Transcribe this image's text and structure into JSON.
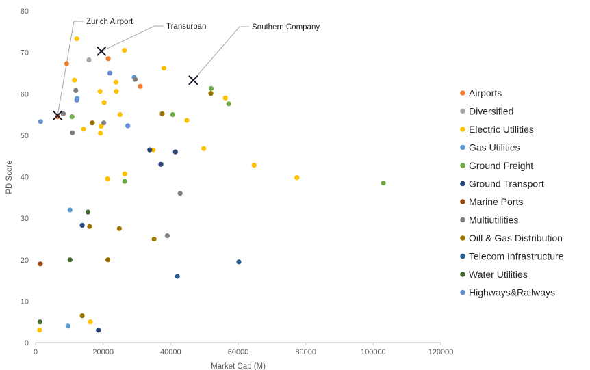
{
  "chart_data": {
    "type": "scatter",
    "xlabel": "Market Cap (M)",
    "ylabel": "PD Score",
    "xlim": [
      0,
      120000
    ],
    "ylim": [
      0,
      80
    ],
    "xticks": [
      0,
      20000,
      40000,
      60000,
      80000,
      100000,
      120000
    ],
    "yticks": [
      0,
      10,
      20,
      30,
      40,
      50,
      60,
      70,
      80
    ],
    "grid": false,
    "legend_position": "right",
    "series": [
      {
        "name": "Airports",
        "color": "#ED7D31",
        "points": [
          [
            6500,
            54.5
          ],
          [
            9200,
            67.3
          ],
          [
            21500,
            68.5
          ],
          [
            31000,
            61.8
          ]
        ]
      },
      {
        "name": "Diversified",
        "color": "#A5A5A5",
        "points": [
          [
            15800,
            68.2
          ]
        ]
      },
      {
        "name": "Electric Utilities",
        "color": "#FFC000",
        "points": [
          [
            1200,
            3
          ],
          [
            11500,
            63.3
          ],
          [
            12200,
            73.3
          ],
          [
            14200,
            51.5
          ],
          [
            16200,
            5
          ],
          [
            19100,
            60.6
          ],
          [
            19200,
            50.5
          ],
          [
            19400,
            52.2
          ],
          [
            20300,
            57.9
          ],
          [
            21300,
            39.5
          ],
          [
            23800,
            62.8
          ],
          [
            23900,
            60.6
          ],
          [
            25000,
            55
          ],
          [
            26300,
            70.5
          ],
          [
            26400,
            40.7
          ],
          [
            34800,
            46.5
          ],
          [
            38000,
            66.2
          ],
          [
            44800,
            53.6
          ],
          [
            49800,
            46.8
          ],
          [
            56200,
            59
          ],
          [
            64700,
            42.8
          ],
          [
            77400,
            39.8
          ]
        ]
      },
      {
        "name": "Gas Utilities",
        "color": "#5B9BD5",
        "points": [
          [
            9600,
            4
          ],
          [
            10200,
            32
          ],
          [
            12300,
            58.9
          ],
          [
            29200,
            64
          ]
        ]
      },
      {
        "name": "Ground Freight",
        "color": "#70AD47",
        "points": [
          [
            10800,
            54.5
          ],
          [
            26400,
            38.9
          ],
          [
            40600,
            55
          ],
          [
            52000,
            61.3
          ],
          [
            57200,
            57.6
          ],
          [
            103000,
            38.5
          ]
        ]
      },
      {
        "name": "Ground Transport",
        "color": "#264478",
        "points": [
          [
            13800,
            28.3
          ],
          [
            18600,
            3
          ],
          [
            33800,
            46.5
          ],
          [
            37100,
            43
          ],
          [
            41400,
            46
          ]
        ]
      },
      {
        "name": "Marine Ports",
        "color": "#9E480E",
        "points": [
          [
            1400,
            19
          ]
        ]
      },
      {
        "name": "Multiutilities",
        "color": "#7F7F7F",
        "points": [
          [
            8200,
            55.2
          ],
          [
            10900,
            50.6
          ],
          [
            11900,
            60.8
          ],
          [
            20200,
            53
          ],
          [
            29500,
            63.5
          ],
          [
            42800,
            36
          ],
          [
            39000,
            25.8
          ]
        ]
      },
      {
        "name": "Oill & Gas Distribution",
        "color": "#997300",
        "points": [
          [
            13800,
            6.5
          ],
          [
            16000,
            28
          ],
          [
            16800,
            53
          ],
          [
            21400,
            20
          ],
          [
            24800,
            27.5
          ],
          [
            35100,
            25
          ],
          [
            37500,
            55.2
          ],
          [
            51900,
            60.1
          ]
        ]
      },
      {
        "name": "Telecom Infrastructure",
        "color": "#255E91",
        "points": [
          [
            42000,
            16
          ],
          [
            60200,
            19.5
          ]
        ]
      },
      {
        "name": "Water Utilities",
        "color": "#43682B",
        "points": [
          [
            1300,
            5
          ],
          [
            10200,
            20
          ],
          [
            15500,
            31.5
          ]
        ]
      },
      {
        "name": "Highways&Railways",
        "color": "#698ED0",
        "points": [
          [
            1500,
            53.3
          ],
          [
            12200,
            58.5
          ],
          [
            22000,
            65
          ],
          [
            27300,
            52.3
          ]
        ]
      }
    ],
    "annotations": [
      {
        "label": "Zurich Airport",
        "x": 6500,
        "y": 54.8
      },
      {
        "label": "Transurban",
        "x": 19500,
        "y": 70.3
      },
      {
        "label": "Southern Company",
        "x": 46700,
        "y": 63.3
      }
    ]
  }
}
